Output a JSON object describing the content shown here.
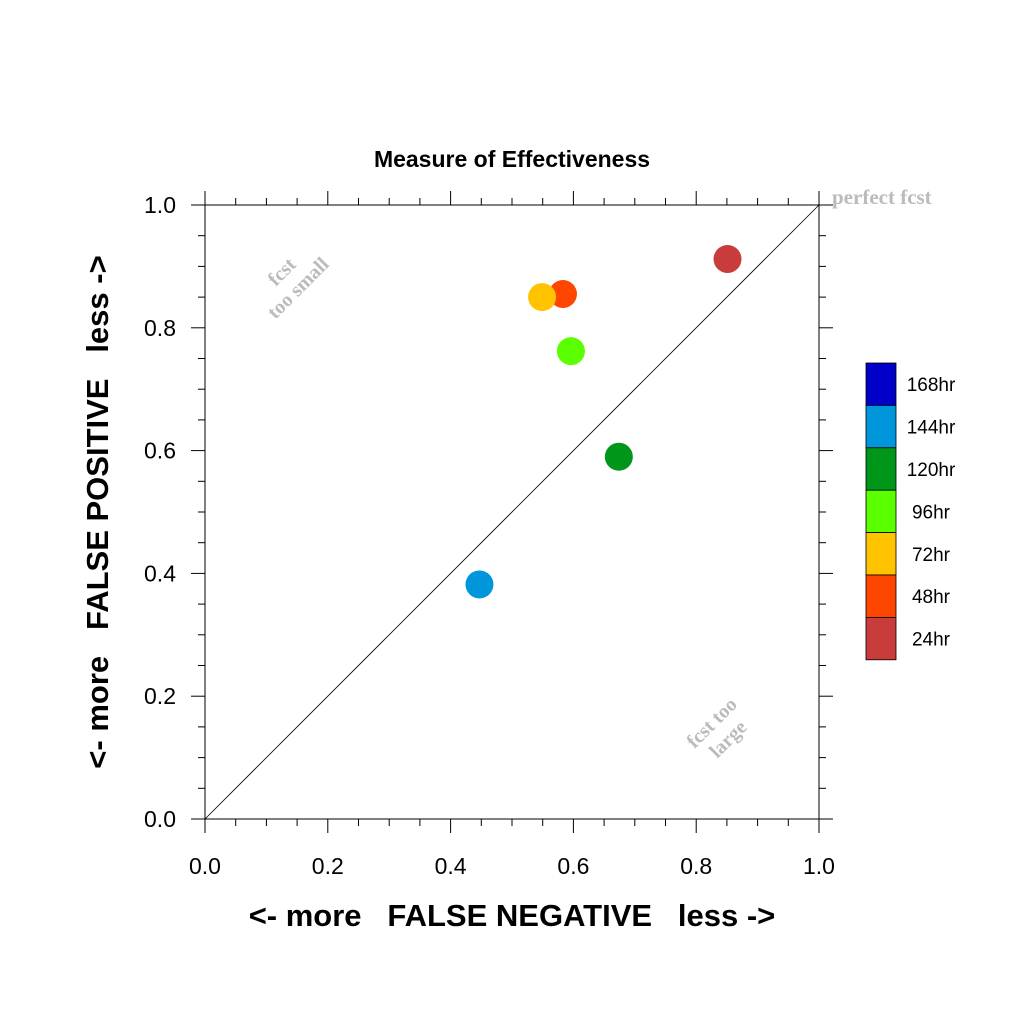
{
  "chart_data": {
    "type": "scatter",
    "title": "Measure of Effectiveness",
    "xlabel": "<- more   FALSE NEGATIVE   less ->",
    "ylabel": "<- more   FALSE POSITIVE   less ->",
    "xlim": [
      0.0,
      1.0
    ],
    "ylim": [
      0.0,
      1.0
    ],
    "x_ticks": [
      "0.0",
      "0.2",
      "0.4",
      "0.6",
      "0.8",
      "1.0"
    ],
    "y_ticks": [
      "0.0",
      "0.2",
      "0.4",
      "0.6",
      "0.8",
      "1.0"
    ],
    "grid": false,
    "diagonal_line": true,
    "annotations": {
      "perfect": "perfect fcst",
      "too_small_1": "fcst",
      "too_small_2": "too small",
      "too_large_1": "fcst too",
      "too_large_2": "large"
    },
    "legend": [
      {
        "label": "168hr",
        "color": "#0000c8"
      },
      {
        "label": "144hr",
        "color": "#0096dc"
      },
      {
        "label": "120hr",
        "color": "#009619"
      },
      {
        "label": "96hr",
        "color": "#5aff00"
      },
      {
        "label": "72hr",
        "color": "#ffc300"
      },
      {
        "label": "48hr",
        "color": "#ff4600"
      },
      {
        "label": "24hr",
        "color": "#c83c3c"
      }
    ],
    "points": [
      {
        "series": "24hr",
        "x": 0.851,
        "y": 0.912,
        "color": "#c83c3c"
      },
      {
        "series": "48hr",
        "x": 0.583,
        "y": 0.855,
        "color": "#ff4600"
      },
      {
        "series": "72hr",
        "x": 0.549,
        "y": 0.85,
        "color": "#ffc300"
      },
      {
        "series": "96hr",
        "x": 0.596,
        "y": 0.762,
        "color": "#5aff00"
      },
      {
        "series": "120hr",
        "x": 0.674,
        "y": 0.59,
        "color": "#009619"
      },
      {
        "series": "144hr",
        "x": 0.447,
        "y": 0.382,
        "color": "#0096dc"
      }
    ]
  }
}
